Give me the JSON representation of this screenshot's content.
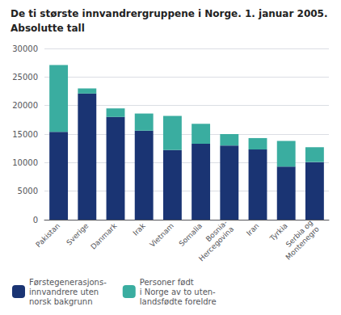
{
  "chart_data": {
    "type": "bar",
    "stacked": true,
    "title": "De ti største innvandrergruppene i Norge. 1. januar 2005.",
    "subtitle": "Absolutte tall",
    "categories": [
      "Pakistan",
      "Sverige",
      "Danmark",
      "Irak",
      "Vietnam",
      "Somalia",
      "Bosnia-\nHercegovina",
      "Iran",
      "Tyrkia",
      "Serbia og\nMontenegro"
    ],
    "series": [
      {
        "name": "Førstegenerasjons-\ninnvandrere uten\nnorsk bakgrunn",
        "color": "#1a3473",
        "values": [
          15400,
          22100,
          18000,
          15600,
          12200,
          13300,
          13000,
          12300,
          9300,
          10100
        ]
      },
      {
        "name": "Personer født\ni Norge av to uten-\nlandsfødte foreldre",
        "color": "#3aada0",
        "values": [
          11700,
          900,
          1500,
          3000,
          6000,
          3500,
          2000,
          2000,
          4500,
          2600
        ]
      }
    ],
    "ylim": [
      0,
      30000
    ],
    "yticks": [
      0,
      5000,
      10000,
      15000,
      20000,
      25000,
      30000
    ],
    "grid": true,
    "legend": "bottom"
  }
}
